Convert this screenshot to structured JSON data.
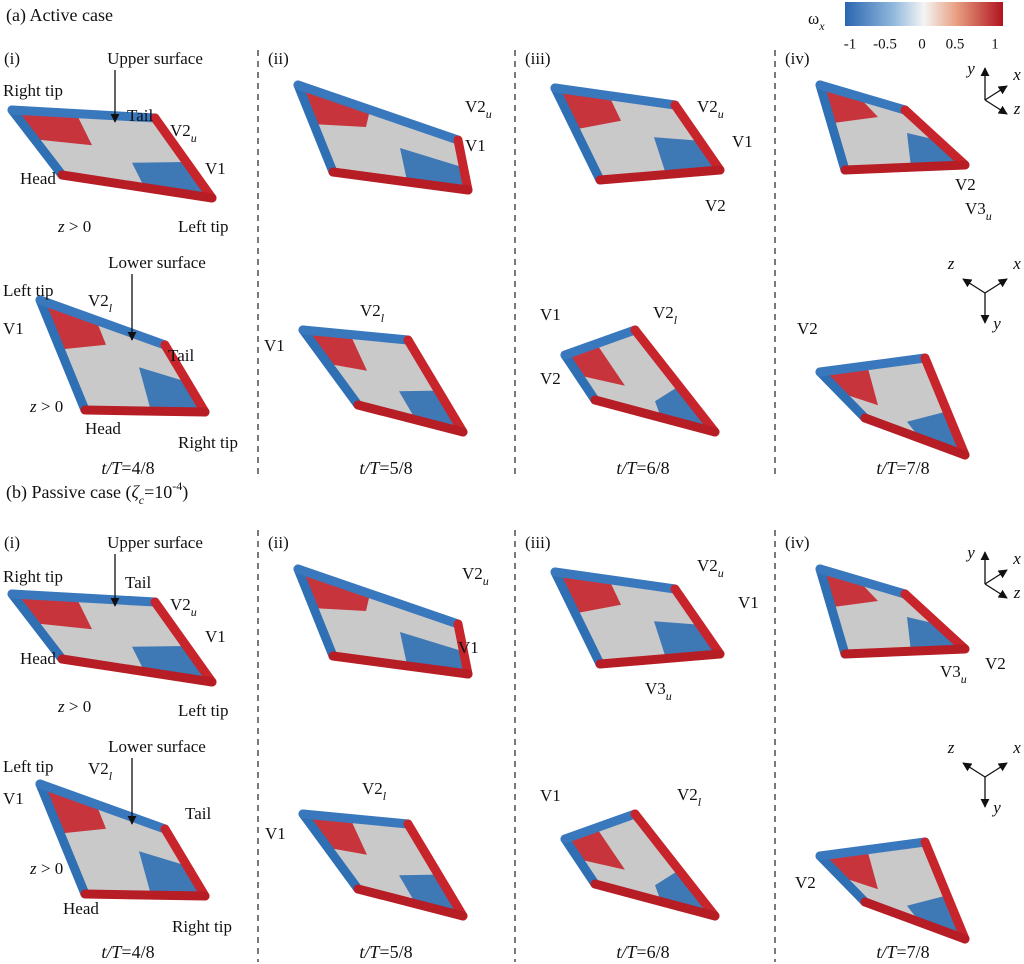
{
  "colorbar": {
    "symbol": {
      "text": "ω",
      "sub": "x"
    },
    "ticks": [
      "-1",
      "-0.5",
      "0",
      "0.5",
      "1"
    ]
  },
  "sections": [
    {
      "title": {
        "lead": "(a)  Active case"
      },
      "columns": [
        {
          "label": "(i)",
          "time": {
            "italic": "t/T",
            "rest": "=4/8"
          },
          "upper_title": "Upper surface",
          "upper": [
            {
              "text": "Right tip"
            },
            {
              "text": "Tail"
            },
            {
              "text": "V2",
              "sub": "u"
            },
            {
              "text": "V1"
            },
            {
              "text": "Head"
            },
            {
              "italic": "z",
              "rest": " > 0"
            },
            {
              "text": "Left tip"
            }
          ],
          "lower_title": "Lower surface",
          "lower": [
            {
              "text": "Left tip"
            },
            {
              "text": "V2",
              "sub": "l"
            },
            {
              "text": "V1"
            },
            {
              "text": "Tail"
            },
            {
              "italic": "z",
              "rest": " > 0"
            },
            {
              "text": "Head"
            },
            {
              "text": "Right tip"
            }
          ]
        },
        {
          "label": "(ii)",
          "time": {
            "italic": "t/T",
            "rest": "=5/8"
          },
          "upper": [
            {
              "text": "V2",
              "sub": "u"
            },
            {
              "text": "V1"
            }
          ],
          "lower": [
            {
              "text": "V2",
              "sub": "l"
            },
            {
              "text": "V1"
            }
          ]
        },
        {
          "label": "(iii)",
          "time": {
            "italic": "t/T",
            "rest": "=6/8"
          },
          "upper": [
            {
              "text": "V2",
              "sub": "u"
            },
            {
              "text": "V1"
            },
            {
              "text": "V2"
            }
          ],
          "lower": [
            {
              "text": "V1"
            },
            {
              "text": "V2",
              "sub": "l"
            },
            {
              "text": "V2"
            }
          ]
        },
        {
          "label": "(iv)",
          "time": {
            "italic": "t/T",
            "rest": "=7/8"
          },
          "upper": [
            {
              "text": "V2"
            },
            {
              "text": "V3",
              "sub": "u"
            }
          ],
          "lower": [
            {
              "text": "V2"
            }
          ],
          "axes_upper": [
            "y",
            "x",
            "z"
          ],
          "axes_lower": [
            "z",
            "x",
            "y"
          ]
        }
      ]
    },
    {
      "title": {
        "lead": "(b)  Passive case (",
        "symbol": "ζ",
        "sub": "c",
        "mid": "=10",
        "sup": "-4",
        "tail": ")"
      },
      "columns": [
        {
          "label": "(i)",
          "time": {
            "italic": "t/T",
            "rest": "=4/8"
          },
          "upper_title": "Upper surface",
          "upper": [
            {
              "text": "Right tip"
            },
            {
              "text": "Tail"
            },
            {
              "text": "V2",
              "sub": "u"
            },
            {
              "text": "V1"
            },
            {
              "text": "Head"
            },
            {
              "italic": "z",
              "rest": " > 0"
            },
            {
              "text": "Left tip"
            }
          ],
          "lower_title": "Lower surface",
          "lower": [
            {
              "text": "Left tip"
            },
            {
              "text": "V2",
              "sub": "l"
            },
            {
              "text": "V1"
            },
            {
              "text": "Tail"
            },
            {
              "italic": "z",
              "rest": " > 0"
            },
            {
              "text": "Head"
            },
            {
              "text": "Right tip"
            }
          ]
        },
        {
          "label": "(ii)",
          "time": {
            "italic": "t/T",
            "rest": "=5/8"
          },
          "upper": [
            {
              "text": "V2",
              "sub": "u"
            },
            {
              "text": "V1"
            }
          ],
          "lower": [
            {
              "text": "V2",
              "sub": "l"
            },
            {
              "text": "V1"
            }
          ]
        },
        {
          "label": "(iii)",
          "time": {
            "italic": "t/T",
            "rest": "=6/8"
          },
          "upper": [
            {
              "text": "V2",
              "sub": "u"
            },
            {
              "text": "V1"
            },
            {
              "text": "V3",
              "sub": "u"
            }
          ],
          "lower": [
            {
              "text": "V1"
            },
            {
              "text": "V2",
              "sub": "l"
            }
          ]
        },
        {
          "label": "(iv)",
          "time": {
            "italic": "t/T",
            "rest": "=7/8"
          },
          "upper": [
            {
              "text": "V3",
              "sub": "u"
            },
            {
              "text": "V2"
            }
          ],
          "lower": [
            {
              "text": "V2"
            }
          ],
          "axes_upper": [
            "y",
            "x",
            "z"
          ],
          "axes_lower": [
            "z",
            "x",
            "y"
          ]
        }
      ]
    }
  ]
}
